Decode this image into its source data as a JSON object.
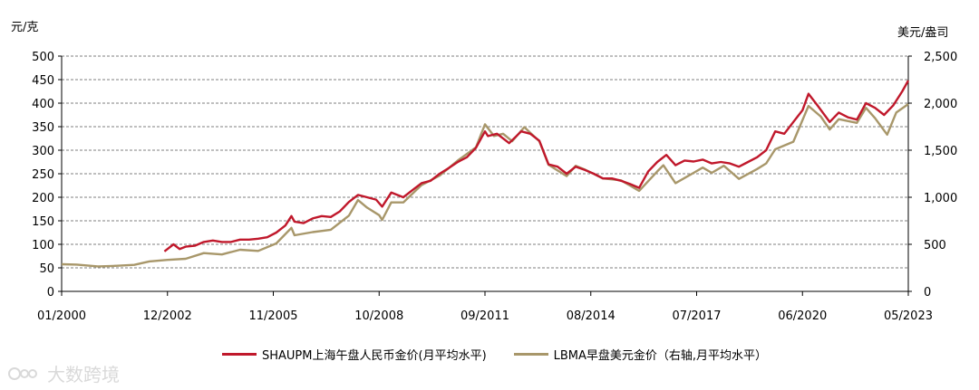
{
  "chart_data": {
    "type": "line",
    "y_left_label": "元/克",
    "y_right_label": "美元/盎司",
    "y_left_range": [
      0,
      500
    ],
    "y_right_range": [
      0,
      2500
    ],
    "y_left_ticks": [
      "500",
      "450",
      "400",
      "350",
      "300",
      "250",
      "200",
      "150",
      "100",
      "50",
      "0"
    ],
    "y_right_ticks": [
      "2,500",
      "2,000",
      "1,500",
      "1,000",
      "500",
      "0"
    ],
    "x_ticks": [
      "01/2000",
      "12/2002",
      "11/2005",
      "10/2008",
      "09/2011",
      "08/2014",
      "07/2017",
      "06/2020",
      "05/2023"
    ],
    "grid": "horizontal dashed",
    "legend_position": "bottom",
    "series": [
      {
        "name": "SHAUPM上海午盘人民币金价(月平均水平)",
        "axis": "left",
        "color": "#c0182b",
        "points": [
          [
            "2002-11",
            85
          ],
          [
            "2002-12",
            90
          ],
          [
            "2003-02",
            100
          ],
          [
            "2003-04",
            90
          ],
          [
            "2003-06",
            95
          ],
          [
            "2003-09",
            97
          ],
          [
            "2003-12",
            105
          ],
          [
            "2004-03",
            108
          ],
          [
            "2004-06",
            105
          ],
          [
            "2004-09",
            105
          ],
          [
            "2004-12",
            110
          ],
          [
            "2005-03",
            110
          ],
          [
            "2005-06",
            112
          ],
          [
            "2005-09",
            115
          ],
          [
            "2005-12",
            125
          ],
          [
            "2006-03",
            140
          ],
          [
            "2006-05",
            160
          ],
          [
            "2006-06",
            148
          ],
          [
            "2006-09",
            145
          ],
          [
            "2006-12",
            155
          ],
          [
            "2007-03",
            160
          ],
          [
            "2007-06",
            158
          ],
          [
            "2007-09",
            170
          ],
          [
            "2007-12",
            190
          ],
          [
            "2008-03",
            205
          ],
          [
            "2008-06",
            200
          ],
          [
            "2008-09",
            195
          ],
          [
            "2008-11",
            180
          ],
          [
            "2009-02",
            210
          ],
          [
            "2009-06",
            200
          ],
          [
            "2009-09",
            215
          ],
          [
            "2009-12",
            230
          ],
          [
            "2010-03",
            235
          ],
          [
            "2010-06",
            250
          ],
          [
            "2010-09",
            262
          ],
          [
            "2010-12",
            275
          ],
          [
            "2011-03",
            285
          ],
          [
            "2011-06",
            305
          ],
          [
            "2011-09",
            340
          ],
          [
            "2011-10",
            330
          ],
          [
            "2012-01",
            335
          ],
          [
            "2012-05",
            315
          ],
          [
            "2012-09",
            340
          ],
          [
            "2012-12",
            335
          ],
          [
            "2013-03",
            320
          ],
          [
            "2013-06",
            270
          ],
          [
            "2013-09",
            265
          ],
          [
            "2013-12",
            250
          ],
          [
            "2014-03",
            265
          ],
          [
            "2014-06",
            258
          ],
          [
            "2014-09",
            250
          ],
          [
            "2014-12",
            240
          ],
          [
            "2015-03",
            240
          ],
          [
            "2015-06",
            235
          ],
          [
            "2015-09",
            228
          ],
          [
            "2015-12",
            220
          ],
          [
            "2016-03",
            255
          ],
          [
            "2016-06",
            275
          ],
          [
            "2016-09",
            290
          ],
          [
            "2016-12",
            268
          ],
          [
            "2017-03",
            278
          ],
          [
            "2017-06",
            276
          ],
          [
            "2017-09",
            280
          ],
          [
            "2017-12",
            272
          ],
          [
            "2018-03",
            275
          ],
          [
            "2018-06",
            272
          ],
          [
            "2018-09",
            265
          ],
          [
            "2018-12",
            275
          ],
          [
            "2019-03",
            285
          ],
          [
            "2019-06",
            300
          ],
          [
            "2019-09",
            340
          ],
          [
            "2019-12",
            335
          ],
          [
            "2020-03",
            360
          ],
          [
            "2020-06",
            385
          ],
          [
            "2020-08",
            420
          ],
          [
            "2020-11",
            395
          ],
          [
            "2021-03",
            360
          ],
          [
            "2021-06",
            380
          ],
          [
            "2021-09",
            370
          ],
          [
            "2021-12",
            365
          ],
          [
            "2022-03",
            400
          ],
          [
            "2022-06",
            390
          ],
          [
            "2022-09",
            375
          ],
          [
            "2022-12",
            395
          ],
          [
            "2023-03",
            425
          ],
          [
            "2023-05",
            448
          ]
        ]
      },
      {
        "name": "LBMA早盘美元金价（右轴,月平均水平）",
        "axis": "right",
        "color": "#a8976a",
        "points": [
          [
            "2000-01",
            288
          ],
          [
            "2000-06",
            285
          ],
          [
            "2001-01",
            265
          ],
          [
            "2001-06",
            270
          ],
          [
            "2002-01",
            282
          ],
          [
            "2002-06",
            318
          ],
          [
            "2002-12",
            335
          ],
          [
            "2003-06",
            346
          ],
          [
            "2003-12",
            407
          ],
          [
            "2004-06",
            392
          ],
          [
            "2004-12",
            442
          ],
          [
            "2005-06",
            430
          ],
          [
            "2005-12",
            510
          ],
          [
            "2006-05",
            675
          ],
          [
            "2006-06",
            596
          ],
          [
            "2006-12",
            630
          ],
          [
            "2007-06",
            655
          ],
          [
            "2007-12",
            805
          ],
          [
            "2008-03",
            970
          ],
          [
            "2008-06",
            890
          ],
          [
            "2008-10",
            810
          ],
          [
            "2008-11",
            760
          ],
          [
            "2009-02",
            945
          ],
          [
            "2009-06",
            945
          ],
          [
            "2009-12",
            1130
          ],
          [
            "2010-06",
            1230
          ],
          [
            "2010-12",
            1390
          ],
          [
            "2011-06",
            1530
          ],
          [
            "2011-09",
            1775
          ],
          [
            "2011-12",
            1650
          ],
          [
            "2012-03",
            1675
          ],
          [
            "2012-06",
            1595
          ],
          [
            "2012-10",
            1745
          ],
          [
            "2012-12",
            1685
          ],
          [
            "2013-03",
            1595
          ],
          [
            "2013-06",
            1345
          ],
          [
            "2013-12",
            1225
          ],
          [
            "2014-03",
            1335
          ],
          [
            "2014-06",
            1295
          ],
          [
            "2014-12",
            1200
          ],
          [
            "2015-06",
            1180
          ],
          [
            "2015-12",
            1068
          ],
          [
            "2016-06",
            1275
          ],
          [
            "2016-08",
            1340
          ],
          [
            "2016-12",
            1150
          ],
          [
            "2017-06",
            1260
          ],
          [
            "2017-09",
            1315
          ],
          [
            "2017-12",
            1260
          ],
          [
            "2018-04",
            1335
          ],
          [
            "2018-09",
            1195
          ],
          [
            "2019-03",
            1300
          ],
          [
            "2019-06",
            1360
          ],
          [
            "2019-09",
            1510
          ],
          [
            "2020-03",
            1590
          ],
          [
            "2020-08",
            1970
          ],
          [
            "2020-12",
            1860
          ],
          [
            "2021-03",
            1720
          ],
          [
            "2021-06",
            1830
          ],
          [
            "2021-12",
            1790
          ],
          [
            "2022-03",
            1950
          ],
          [
            "2022-06",
            1840
          ],
          [
            "2022-10",
            1665
          ],
          [
            "2023-01",
            1900
          ],
          [
            "2023-05",
            1990
          ]
        ]
      }
    ]
  },
  "watermark": "大数跨境"
}
